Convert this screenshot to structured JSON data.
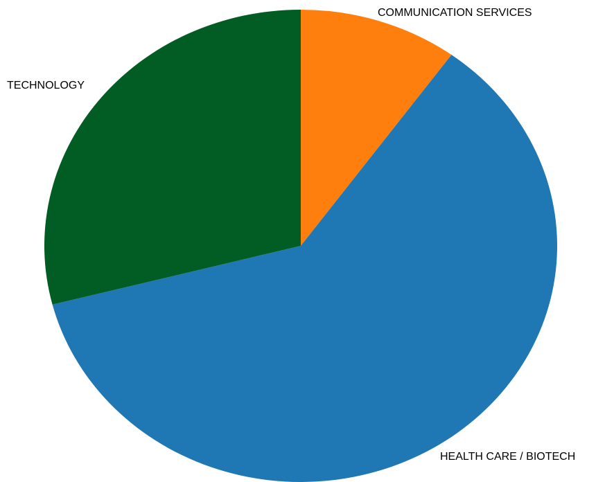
{
  "chart_data": {
    "type": "pie",
    "start_angle_deg": 0,
    "direction": "clockwise",
    "slices": [
      {
        "label": "COMMUNICATION SERVICES",
        "value": 10.0,
        "color": "#ff7f0e"
      },
      {
        "label": "HEALTH CARE / BIOTECH",
        "value": 61.0,
        "color": "#1f77b4"
      },
      {
        "label": "TECHNOLOGY",
        "value": 29.0,
        "color": "#025d24"
      }
    ],
    "legend": "none"
  }
}
